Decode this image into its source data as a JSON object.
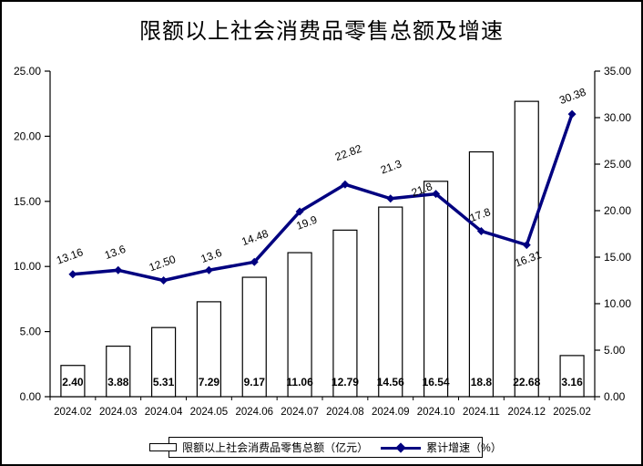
{
  "title": "限额以上社会消费品零售总额及增速",
  "legend": {
    "bar_label": "限额以上社会消费品零售总额（亿元）",
    "line_label": "累计增速（%）"
  },
  "colors": {
    "line": "#000080",
    "marker": "#000080",
    "bar_fill": "#ffffff",
    "bar_stroke": "#000000",
    "axis": "#000000",
    "text": "#000000"
  },
  "chart_data": {
    "type": "combo",
    "categories": [
      "2024.02",
      "2024.03",
      "2024.04",
      "2024.05",
      "2024.06",
      "2024.07",
      "2024.08",
      "2024.09",
      "2024.10",
      "2024.11",
      "2024.12",
      "2025.02"
    ],
    "series": [
      {
        "name": "限额以上社会消费品零售总额（亿元）",
        "type": "bar",
        "axis": "left",
        "values": [
          2.4,
          3.88,
          5.31,
          7.29,
          9.17,
          11.06,
          12.79,
          14.56,
          16.54,
          18.8,
          22.68,
          3.16
        ],
        "labels": [
          "2.40",
          "3.88",
          "5.31",
          "7.29",
          "9.17",
          "11.06",
          "12.79",
          "14.56",
          "16.54",
          "18.8",
          "22.68",
          "3.16"
        ]
      },
      {
        "name": "累计增速（%）",
        "type": "line",
        "axis": "right",
        "values": [
          13.16,
          13.6,
          12.5,
          13.6,
          14.48,
          19.9,
          22.82,
          21.3,
          21.8,
          17.8,
          16.31,
          30.38
        ],
        "labels": [
          "13.16",
          "13.6",
          "12.50",
          "13.6",
          "14.48",
          "19.9",
          "22.82",
          "21.3",
          "21.8",
          "17.8",
          "16.31",
          "30.38"
        ]
      }
    ],
    "left_axis": {
      "min": 0,
      "max": 25,
      "step": 5,
      "tick_labels": [
        "0.00",
        "5.00",
        "10.00",
        "15.00",
        "20.00",
        "25.00"
      ]
    },
    "right_axis": {
      "min": 0,
      "max": 35,
      "step": 5,
      "tick_labels": [
        "0.00",
        "5.00",
        "10.00",
        "15.00",
        "20.00",
        "25.00",
        "30.00",
        "35.00"
      ]
    },
    "grid": false,
    "legend_position": "bottom"
  }
}
